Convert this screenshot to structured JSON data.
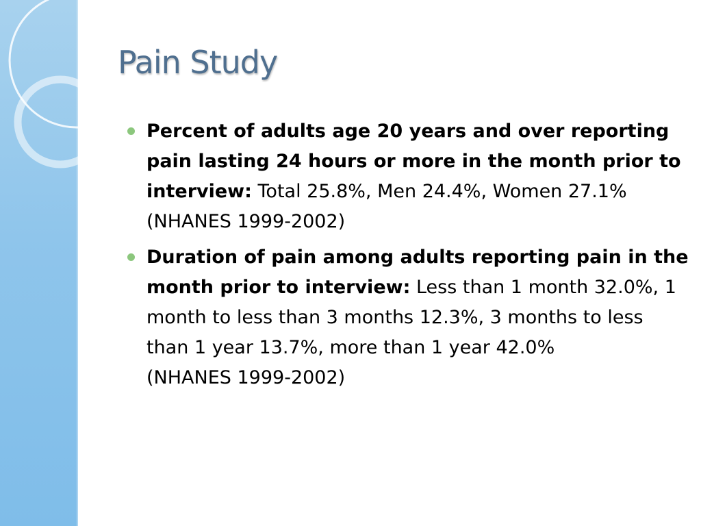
{
  "slide": {
    "title": "Pain Study",
    "bullets": [
      {
        "lead": "Percent of adults age 20 years and over reporting pain lasting 24 hours or more in the month prior to interview:",
        "detail": "Total 25.8%, Men 24.4%, Women 27.1%",
        "source": "(NHANES 1999-2002)"
      },
      {
        "lead": "Duration of pain among adults reporting pain in the month prior to interview:",
        "detail": "Less than 1 month 32.0%, 1 month to less than 3 months 12.3%, 3 months to less than 1 year 13.7%, more than 1 year 42.0%",
        "source": "(NHANES 1999-2002)"
      }
    ]
  },
  "colors": {
    "title": "#4f6f8f",
    "bullet": "#8cc77d",
    "band": "#8fc5eb"
  }
}
